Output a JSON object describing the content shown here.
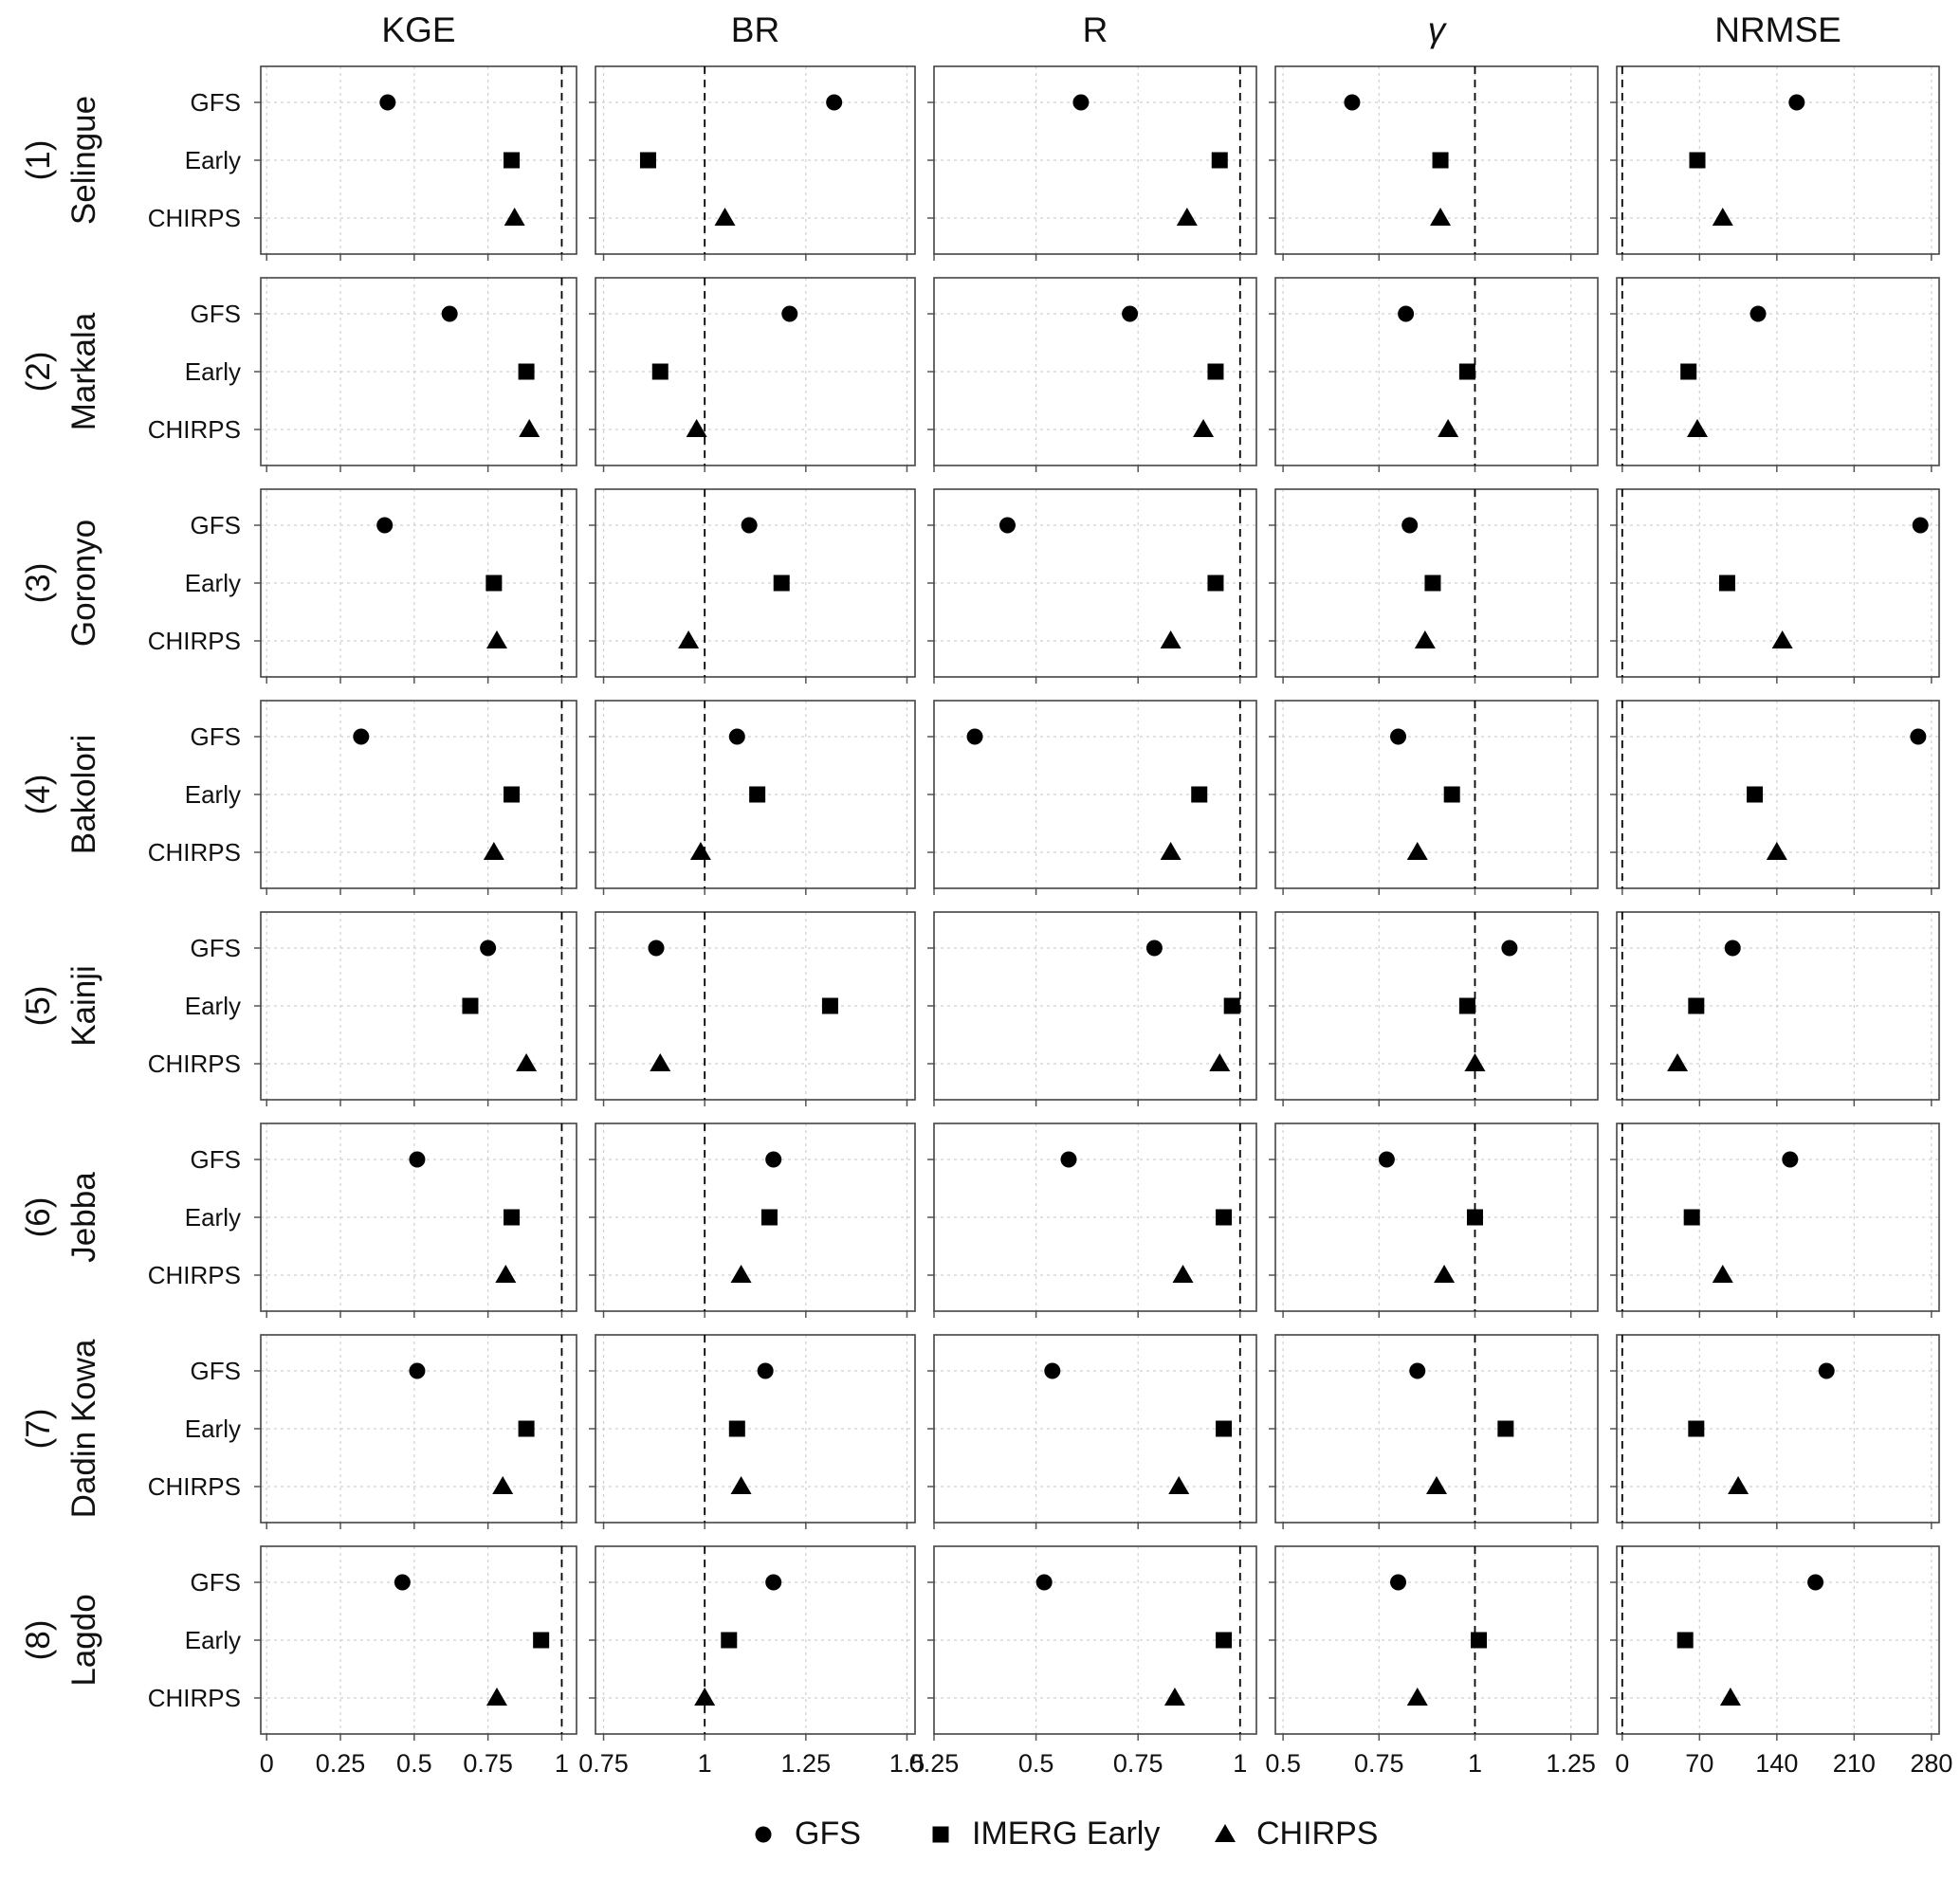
{
  "chart_data": {
    "type": "scatter",
    "metrics": [
      {
        "label": "KGE",
        "ticks": [
          "0",
          "0.25",
          "0.5",
          "0.75",
          "1"
        ],
        "xlim": [
          -0.02,
          1.05
        ],
        "ref": 1
      },
      {
        "label": "BR",
        "ticks": [
          "0.75",
          "1",
          "1.25",
          "1.5"
        ],
        "xlim": [
          0.73,
          1.52
        ],
        "ref": 1
      },
      {
        "label": "R",
        "ticks": [
          "0.25",
          "0.5",
          "0.75",
          "1"
        ],
        "xlim": [
          0.25,
          1.04
        ],
        "ref": 1
      },
      {
        "label": "γ",
        "ticks": [
          "0.5",
          "0.75",
          "1",
          "1.25"
        ],
        "xlim": [
          0.48,
          1.32
        ],
        "ref": 1
      },
      {
        "label": "NRMSE",
        "ticks": [
          "0",
          "70",
          "140",
          "210",
          "280"
        ],
        "xlim": [
          -5,
          287
        ],
        "ref": 0
      }
    ],
    "categories": [
      "GFS",
      "Early",
      "CHIRPS"
    ],
    "stations": [
      {
        "number": "(1)",
        "name": "Selingue",
        "values": [
          [
            0.41,
            0.83,
            0.84
          ],
          [
            1.32,
            0.86,
            1.05
          ],
          [
            0.61,
            0.95,
            0.87
          ],
          [
            0.68,
            0.91,
            0.91
          ],
          [
            158,
            68,
            91
          ]
        ]
      },
      {
        "number": "(2)",
        "name": "Markala",
        "values": [
          [
            0.62,
            0.88,
            0.89
          ],
          [
            1.21,
            0.89,
            0.98
          ],
          [
            0.73,
            0.94,
            0.91
          ],
          [
            0.82,
            0.98,
            0.93
          ],
          [
            123,
            60,
            68
          ]
        ]
      },
      {
        "number": "(3)",
        "name": "Goronyo",
        "values": [
          [
            0.4,
            0.77,
            0.78
          ],
          [
            1.11,
            1.19,
            0.96
          ],
          [
            0.43,
            0.94,
            0.83
          ],
          [
            0.83,
            0.89,
            0.87
          ],
          [
            270,
            95,
            145
          ]
        ]
      },
      {
        "number": "(4)",
        "name": "Bakolori",
        "values": [
          [
            0.32,
            0.83,
            0.77
          ],
          [
            1.08,
            1.13,
            0.99
          ],
          [
            0.35,
            0.9,
            0.83
          ],
          [
            0.8,
            0.94,
            0.85
          ],
          [
            268,
            120,
            140
          ]
        ]
      },
      {
        "number": "(5)",
        "name": "Kainji",
        "values": [
          [
            0.75,
            0.69,
            0.88
          ],
          [
            0.88,
            1.31,
            0.89
          ],
          [
            0.79,
            0.98,
            0.95
          ],
          [
            1.09,
            0.98,
            1.0
          ],
          [
            100,
            67,
            50
          ]
        ]
      },
      {
        "number": "(6)",
        "name": "Jebba",
        "values": [
          [
            0.51,
            0.83,
            0.81
          ],
          [
            1.17,
            1.16,
            1.09
          ],
          [
            0.58,
            0.96,
            0.86
          ],
          [
            0.77,
            1.0,
            0.92
          ],
          [
            152,
            63,
            91
          ]
        ]
      },
      {
        "number": "(7)",
        "name": "Dadin Kowa",
        "values": [
          [
            0.51,
            0.88,
            0.8
          ],
          [
            1.15,
            1.08,
            1.09
          ],
          [
            0.54,
            0.96,
            0.85
          ],
          [
            0.85,
            1.08,
            0.9
          ],
          [
            185,
            67,
            105
          ]
        ]
      },
      {
        "number": "(8)",
        "name": "Lagdo",
        "values": [
          [
            0.46,
            0.93,
            0.78
          ],
          [
            1.17,
            1.06,
            1.0
          ],
          [
            0.52,
            0.96,
            0.84
          ],
          [
            0.8,
            1.01,
            0.85
          ],
          [
            175,
            57,
            98
          ]
        ]
      }
    ],
    "legend": {
      "position": "bottom",
      "items": [
        {
          "label": "GFS",
          "marker": "circle"
        },
        {
          "label": "IMERG Early",
          "marker": "square"
        },
        {
          "label": "CHIRPS",
          "marker": "triangle"
        }
      ]
    },
    "grid": true,
    "reference_lines": "dashed"
  }
}
